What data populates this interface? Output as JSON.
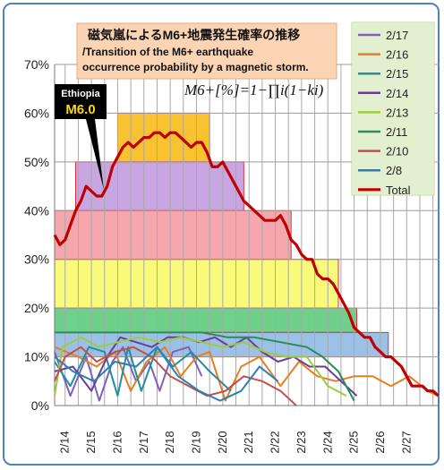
{
  "title": {
    "line1": "磁気嵐によるM6+地震発生確率の推移",
    "line2": "/Transition of the M6+ earthquake",
    "line3": "occurrence probability by a magnetic storm."
  },
  "formula": "M6+[%]=1−∏i(1−ki)",
  "callout": {
    "line1": "Ethiopia",
    "line2": "M6.0"
  },
  "chart_data": {
    "type": "line",
    "ylim": [
      0,
      70
    ],
    "yticks": [
      "0%",
      "10%",
      "20%",
      "30%",
      "40%",
      "50%",
      "60%",
      "70%"
    ],
    "x_range": [
      13.6,
      28.25
    ],
    "xticks": [
      "2/14",
      "2/15",
      "2/16",
      "2/17",
      "2/18",
      "2/19",
      "2/20",
      "2/21",
      "2/22",
      "2/23",
      "2/24",
      "2/25",
      "2/26",
      "2/27"
    ],
    "grid": true,
    "legend_position": "top-right",
    "bands": [
      {
        "from": 16.0,
        "to": 19.5,
        "low": 50,
        "high": 60,
        "color": "#f9c231"
      },
      {
        "from": 14.4,
        "to": 20.8,
        "low": 40,
        "high": 50,
        "color": "#c7a6e2"
      },
      {
        "from": 13.6,
        "to": 22.6,
        "low": 30,
        "high": 40,
        "color": "#f6a7ad"
      },
      {
        "from": 13.6,
        "to": 24.4,
        "low": 20,
        "high": 30,
        "color": "#fafa7a"
      },
      {
        "from": 13.6,
        "to": 25.1,
        "low": 15,
        "high": 20,
        "color": "#6fd08c"
      },
      {
        "from": 13.6,
        "to": 26.3,
        "low": 10,
        "high": 15,
        "color": "#9bc2e6"
      }
    ],
    "series": [
      {
        "name": "2/17",
        "color": "#7f5fbf",
        "x": [
          13.6,
          14.2,
          14.8,
          15.3,
          15.8,
          16.2,
          16.7,
          17.2,
          17.6,
          18.1,
          18.7,
          19.2
        ],
        "y": [
          11,
          2,
          10,
          1,
          9,
          12,
          5,
          9,
          3,
          11,
          12,
          6
        ]
      },
      {
        "name": "2/16",
        "color": "#e67e22",
        "x": [
          13.6,
          14.5,
          15.2,
          15.9,
          16.5,
          17.1,
          17.8,
          18.4,
          19.0,
          19.5,
          20.1,
          20.7,
          21.4,
          22.2,
          22.9,
          23.6,
          24.3,
          25.0,
          25.7,
          26.4,
          27.1,
          27.8,
          28.2
        ],
        "y": [
          12,
          10,
          8,
          11,
          3,
          9,
          12,
          6,
          10,
          11,
          1,
          8,
          10,
          4,
          9,
          6,
          5,
          6,
          6,
          4,
          6,
          3,
          2
        ]
      },
      {
        "name": "2/15",
        "color": "#1f8f9f",
        "x": [
          13.6,
          14.2,
          14.9,
          15.5,
          16.0,
          16.4,
          16.9,
          17.5,
          18.1,
          18.8,
          19.5,
          20.3
        ],
        "y": [
          9,
          4,
          12,
          11,
          2,
          12,
          3,
          12,
          8,
          11,
          7,
          3
        ]
      },
      {
        "name": "2/14",
        "color": "#6a3d9a",
        "x": [
          13.6,
          14.3,
          15.0,
          15.6,
          16.1,
          16.7,
          17.3,
          17.9,
          18.5,
          19.1,
          19.7,
          20.3,
          20.9,
          21.5,
          22.1,
          22.7,
          23.3,
          23.9,
          24.5,
          25.1
        ],
        "y": [
          7,
          8,
          3,
          10,
          14,
          13,
          12,
          14,
          14,
          13,
          14,
          12,
          14,
          11,
          9,
          10,
          8,
          8,
          5,
          2
        ]
      },
      {
        "name": "2/13",
        "color": "#9ccc3c",
        "x": [
          13.6,
          13.9,
          14.6,
          15.3,
          16.0,
          16.8,
          17.6,
          18.4,
          19.2,
          20.0,
          20.8,
          21.6,
          22.4,
          23.2,
          24.0,
          24.7
        ],
        "y": [
          2,
          12,
          14,
          12,
          13,
          14,
          13,
          14,
          13,
          12,
          13,
          11,
          10,
          10,
          4,
          2
        ]
      },
      {
        "name": "2/11",
        "color": "#2e8b57",
        "x": [
          13.6,
          14.4,
          15.3,
          16.2,
          17.2,
          18.2,
          19.2,
          20.2,
          21.2,
          22.2,
          23.2,
          23.8,
          24.4,
          25.0
        ],
        "y": [
          15,
          15,
          15,
          15,
          15,
          15,
          15,
          14,
          14,
          13,
          12,
          10,
          7,
          1
        ]
      },
      {
        "name": "2/10",
        "color": "#c0504d",
        "x": [
          13.6,
          14.0,
          14.6,
          15.2,
          15.9,
          16.6,
          17.3,
          18.0,
          18.7,
          19.4,
          20.1,
          20.8,
          21.5,
          22.2,
          22.8
        ],
        "y": [
          5,
          10,
          12,
          9,
          11,
          12,
          10,
          6,
          4,
          2,
          3,
          6,
          5,
          3,
          0
        ]
      },
      {
        "name": "2/8",
        "color": "#2a7fb8",
        "x": [
          13.6,
          14.3,
          15.1,
          15.9,
          16.7,
          17.5,
          18.3,
          19.1,
          19.9,
          20.7,
          21.4,
          22.1
        ],
        "y": [
          10,
          7,
          5,
          9,
          8,
          12,
          6,
          3,
          1,
          3,
          8,
          5
        ]
      },
      {
        "name": "Total",
        "color": "#c00000",
        "x": [
          13.6,
          13.8,
          14.0,
          14.2,
          14.4,
          14.6,
          14.8,
          15.0,
          15.2,
          15.4,
          15.6,
          15.8,
          16.0,
          16.2,
          16.4,
          16.6,
          16.8,
          17.0,
          17.2,
          17.4,
          17.6,
          17.8,
          18.0,
          18.2,
          18.4,
          18.6,
          18.8,
          19.0,
          19.2,
          19.4,
          19.6,
          19.8,
          20.0,
          20.2,
          20.4,
          20.6,
          20.8,
          21.0,
          21.2,
          21.4,
          21.6,
          21.8,
          22.0,
          22.2,
          22.4,
          22.6,
          22.8,
          23.0,
          23.2,
          23.4,
          23.6,
          23.8,
          24.0,
          24.2,
          24.4,
          24.6,
          24.8,
          25.0,
          25.2,
          25.4,
          25.6,
          25.8,
          26.0,
          26.2,
          26.4,
          26.6,
          26.8,
          27.0,
          27.2,
          27.4,
          27.6,
          27.8,
          28.0,
          28.2
        ],
        "y": [
          35,
          33,
          34,
          37,
          40,
          42,
          45,
          44,
          43,
          43,
          45,
          49,
          51,
          53,
          54,
          53,
          54,
          55,
          55,
          56,
          56,
          55,
          56,
          56,
          55,
          54,
          53,
          54,
          54,
          52,
          49,
          49,
          50,
          48,
          46,
          44,
          42,
          41,
          40,
          39,
          38,
          38,
          38,
          39,
          37,
          34,
          33,
          31,
          30,
          30,
          27,
          26,
          26,
          25,
          23,
          21,
          19,
          16,
          15,
          14,
          14,
          12,
          11,
          10,
          10,
          9,
          8,
          6,
          4,
          4,
          4,
          3,
          3,
          2
        ]
      }
    ]
  },
  "legend": [
    {
      "label": "2/17",
      "color": "#7f5fbf"
    },
    {
      "label": "2/16",
      "color": "#e67e22"
    },
    {
      "label": "2/15",
      "color": "#1f8f9f"
    },
    {
      "label": "2/14",
      "color": "#6a3d9a"
    },
    {
      "label": "2/13",
      "color": "#9ccc3c"
    },
    {
      "label": "2/11",
      "color": "#2e8b57"
    },
    {
      "label": "2/10",
      "color": "#c0504d"
    },
    {
      "label": "2/8",
      "color": "#2a7fb8"
    },
    {
      "label": "Total",
      "color": "#c00000"
    }
  ]
}
